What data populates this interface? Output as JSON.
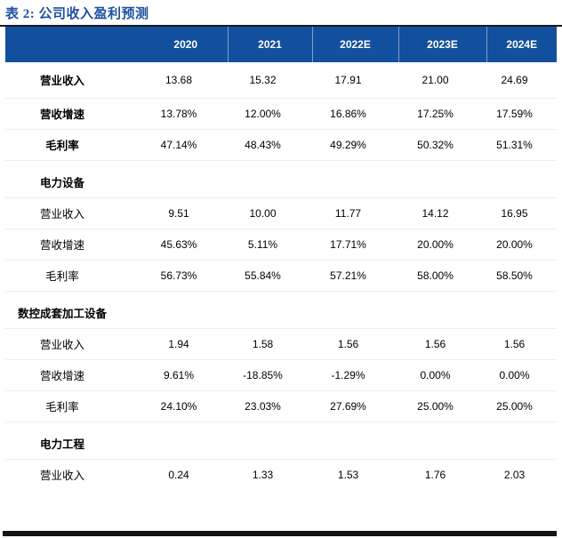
{
  "title": "表 2: 公司收入盈利预测",
  "colors": {
    "header-bg": "#134F9F",
    "title-color": "#1D509F",
    "top-rule": "#1a1a1a",
    "bottom-bar": "#131318",
    "text": "#000000"
  },
  "table": {
    "columns": [
      "",
      "2020",
      "2021",
      "2022E",
      "2023E",
      "2024E"
    ],
    "rows": [
      {
        "label": "营业收入",
        "bold": true,
        "section": false,
        "values": [
          "13.68",
          "15.32",
          "17.91",
          "21.00",
          "24.69"
        ]
      },
      {
        "label": "营收增速",
        "bold": true,
        "section": false,
        "values": [
          "13.78%",
          "12.00%",
          "16.86%",
          "17.25%",
          "17.59%"
        ]
      },
      {
        "label": "毛利率",
        "bold": true,
        "section": false,
        "values": [
          "47.14%",
          "48.43%",
          "49.29%",
          "50.32%",
          "51.31%"
        ]
      },
      {
        "label": "电力设备",
        "bold": true,
        "section": true,
        "values": [
          "",
          "",
          "",
          "",
          ""
        ]
      },
      {
        "label": "营业收入",
        "bold": false,
        "section": false,
        "values": [
          "9.51",
          "10.00",
          "11.77",
          "14.12",
          "16.95"
        ]
      },
      {
        "label": "营收增速",
        "bold": false,
        "section": false,
        "values": [
          "45.63%",
          "5.11%",
          "17.71%",
          "20.00%",
          "20.00%"
        ]
      },
      {
        "label": "毛利率",
        "bold": false,
        "section": false,
        "values": [
          "56.73%",
          "55.84%",
          "57.21%",
          "58.00%",
          "58.50%"
        ]
      },
      {
        "label": "数控成套加工设备",
        "bold": true,
        "section": true,
        "values": [
          "",
          "",
          "",
          "",
          ""
        ]
      },
      {
        "label": "营业收入",
        "bold": false,
        "section": false,
        "values": [
          "1.94",
          "1.58",
          "1.56",
          "1.56",
          "1.56"
        ]
      },
      {
        "label": "营收增速",
        "bold": false,
        "section": false,
        "values": [
          "9.61%",
          "-18.85%",
          "-1.29%",
          "0.00%",
          "0.00%"
        ]
      },
      {
        "label": "毛利率",
        "bold": false,
        "section": false,
        "values": [
          "24.10%",
          "23.03%",
          "27.69%",
          "25.00%",
          "25.00%"
        ]
      },
      {
        "label": "电力工程",
        "bold": true,
        "section": true,
        "values": [
          "",
          "",
          "",
          "",
          ""
        ]
      },
      {
        "label": "营业收入",
        "bold": false,
        "section": false,
        "values": [
          "0.24",
          "1.33",
          "1.53",
          "1.76",
          "2.03"
        ]
      }
    ]
  }
}
